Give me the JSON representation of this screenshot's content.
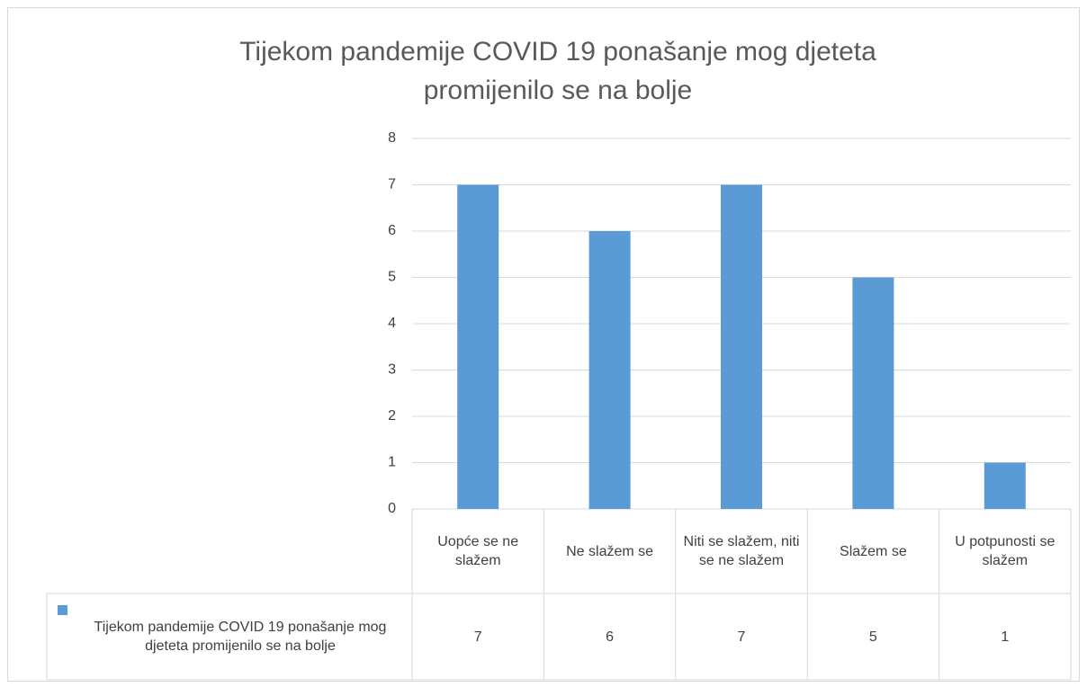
{
  "chart_data": {
    "type": "bar",
    "title": "Tijekom pandemije COVID 19 ponašanje mog djeteta promijenilo se na bolje",
    "categories": [
      "Uopće se ne slažem",
      "Ne slažem se",
      "Niti se slažem, niti se ne slažem",
      "Slažem se",
      "U potpunosti se slažem"
    ],
    "series": [
      {
        "name": "Tijekom pandemije COVID 19 ponašanje mog djeteta promijenilo se na bolje",
        "color": "#5b9bd5",
        "values": [
          7,
          6,
          7,
          5,
          1
        ]
      }
    ],
    "ylim": [
      0,
      8
    ],
    "yticks": [
      0,
      1,
      2,
      3,
      4,
      5,
      6,
      7,
      8
    ],
    "grid": true,
    "data_table": true
  }
}
